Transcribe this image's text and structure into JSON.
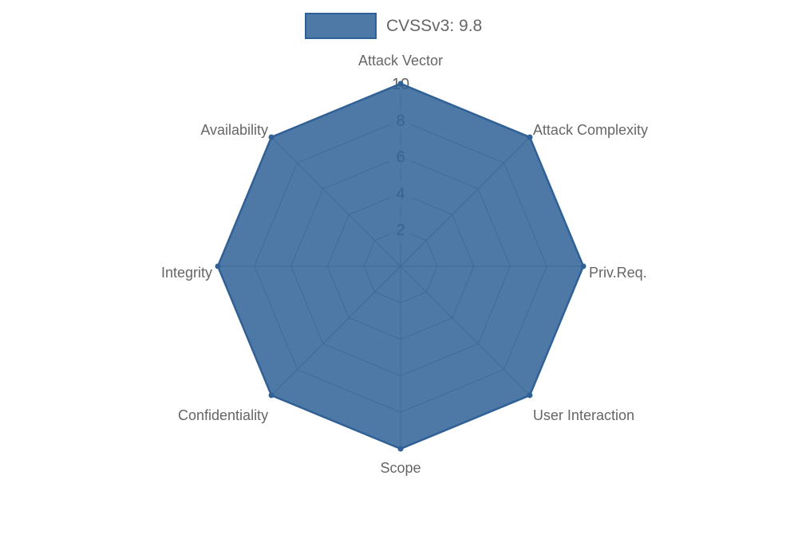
{
  "page": {
    "background": "#ffffff"
  },
  "legend": {
    "position": "top",
    "items": [
      {
        "label": "CVSSv3: 9.8",
        "swatch_color": "rgba(47,97,150,0.85)",
        "swatch_border": "#2F6196"
      }
    ]
  },
  "colors": {
    "series_fill": "rgba(47,97,150,0.85)",
    "series_stroke": "#2F6196",
    "grid_line": "#999999",
    "tick_text": "#666666",
    "tick_backdrop": "rgba(255,255,255,0.75)",
    "axis_label": "#666666",
    "legend_text": "#666666"
  },
  "chart_data": {
    "type": "radar",
    "title": "",
    "categories": [
      "Attack Vector",
      "Attack Complexity",
      "Priv.Req.",
      "User Interaction",
      "Scope",
      "Confidentiality",
      "Integrity",
      "Availability"
    ],
    "series": [
      {
        "name": "CVSSv3: 9.8",
        "values": [
          10,
          10,
          10,
          10,
          10,
          10,
          10,
          10
        ]
      }
    ],
    "scale": {
      "min": 0,
      "max": 10,
      "ticks": [
        2,
        4,
        6,
        8,
        10
      ]
    },
    "grid": true,
    "legend_position": "top"
  }
}
